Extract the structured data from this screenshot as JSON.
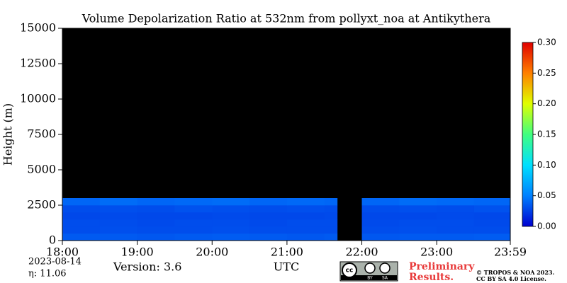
{
  "chart_data": {
    "type": "heatmap",
    "title": "Volume Depolarization Ratio at 532nm from pollyxt_noa at Antikythera",
    "y_label": "Height (m)",
    "x_label": "UTC",
    "x_edges": [
      18,
      18.5,
      19,
      19.5,
      20,
      20.5,
      21,
      21.5,
      21.67,
      22,
      22.5,
      23,
      23.5,
      23.983
    ],
    "y_edges": [
      0,
      500,
      1000,
      1500,
      2000,
      2500,
      3000
    ],
    "z": [
      [
        0.035,
        0.035,
        0.034,
        0.035,
        0.036,
        0.035,
        0.034,
        0.035,
        null,
        0.034,
        0.035,
        0.035,
        0.036,
        0.035
      ],
      [
        0.03,
        0.031,
        0.03,
        0.03,
        0.031,
        0.03,
        0.03,
        0.03,
        null,
        0.03,
        0.031,
        0.03,
        0.03,
        0.031
      ],
      [
        0.03,
        0.03,
        0.029,
        0.03,
        0.03,
        0.029,
        0.03,
        0.03,
        null,
        0.029,
        0.03,
        0.03,
        0.029,
        0.03
      ],
      [
        0.028,
        0.029,
        0.028,
        0.028,
        0.029,
        0.028,
        0.028,
        0.029,
        null,
        0.028,
        0.028,
        0.029,
        0.028,
        0.028
      ],
      [
        0.03,
        0.031,
        0.03,
        0.032,
        0.031,
        0.03,
        0.031,
        0.03,
        null,
        0.03,
        0.031,
        0.03,
        0.032,
        0.03
      ],
      [
        0.04,
        0.042,
        0.04,
        0.041,
        0.042,
        0.04,
        0.041,
        0.04,
        null,
        0.04,
        0.042,
        0.041,
        0.04,
        0.042
      ]
    ],
    "xlim": [
      18,
      23.983
    ],
    "ylim": [
      0,
      15000
    ],
    "xticks": [
      {
        "value": 18,
        "label": "18:00"
      },
      {
        "value": 19,
        "label": "19:00"
      },
      {
        "value": 20,
        "label": "20:00"
      },
      {
        "value": 21,
        "label": "21:00"
      },
      {
        "value": 22,
        "label": "22:00"
      },
      {
        "value": 23,
        "label": "23:00"
      },
      {
        "value": 23.983,
        "label": "23:59"
      }
    ],
    "yticks": [
      0,
      2500,
      5000,
      7500,
      10000,
      12500,
      15000
    ],
    "clim": [
      0,
      0.3
    ],
    "cticks": [
      {
        "value": 0,
        "label": "0.00"
      },
      {
        "value": 0.05,
        "label": "0.05"
      },
      {
        "value": 0.1,
        "label": "0.10"
      },
      {
        "value": 0.15,
        "label": "0.15"
      },
      {
        "value": 0.2,
        "label": "0.20"
      },
      {
        "value": 0.25,
        "label": "0.25"
      },
      {
        "value": 0.3,
        "label": "0.30"
      }
    ],
    "colormap": [
      "#0000d0",
      "#0080ff",
      "#00e0ff",
      "#40ff80",
      "#e0ff00",
      "#ff8000",
      "#e00000"
    ],
    "background": "#000000",
    "date": "2023-08-14",
    "eta": "η:  11.06",
    "version": "Version: 3.6",
    "badge": [
      "BY",
      "SA"
    ],
    "preliminary": [
      "Preliminary",
      "Results."
    ],
    "license": [
      "© TROPOS & NOA 2023.",
      "CC BY SA 4.0 License."
    ]
  }
}
